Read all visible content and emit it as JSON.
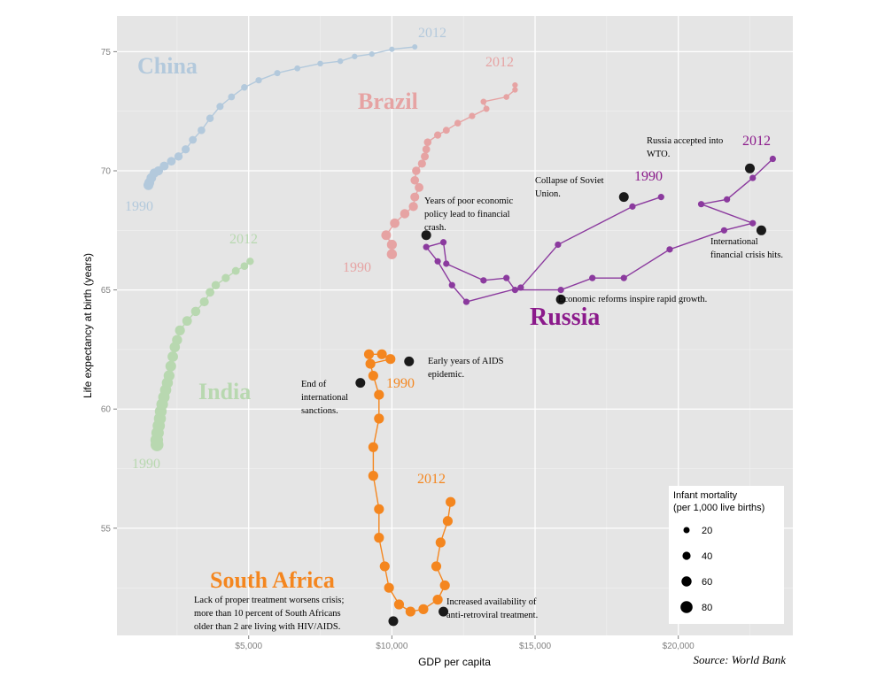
{
  "chart_data": {
    "type": "scatter",
    "xlabel": "GDP per capita",
    "ylabel": "Life expectancy at birth (years)",
    "xlim": [
      400,
      24000
    ],
    "ylim": [
      50.5,
      76.5
    ],
    "x_ticks": [
      {
        "value": 5000,
        "label": "$5,000"
      },
      {
        "value": 10000,
        "label": "$10,000"
      },
      {
        "value": 15000,
        "label": "$15,000"
      },
      {
        "value": 20000,
        "label": "$20,000"
      }
    ],
    "y_ticks": [
      {
        "value": 55,
        "label": "55"
      },
      {
        "value": 60,
        "label": "60"
      },
      {
        "value": 65,
        "label": "65"
      },
      {
        "value": 70,
        "label": "70"
      },
      {
        "value": 75,
        "label": "75"
      }
    ],
    "grid": true,
    "source": "Source: World Bank",
    "legend": {
      "title_line1": "Infant mortality",
      "title_line2": "(per 1,000 live births)",
      "placement": "bottom-right",
      "entries": [
        {
          "label": "20",
          "value": 20
        },
        {
          "label": "40",
          "value": 40
        },
        {
          "label": "60",
          "value": 60
        },
        {
          "label": "80",
          "value": 80
        }
      ]
    },
    "series": [
      {
        "name": "China",
        "color": "#b3c9dc",
        "points": [
          [
            1500,
            69.4,
            58
          ],
          [
            1530,
            69.5,
            57
          ],
          [
            1600,
            69.7,
            55
          ],
          [
            1700,
            69.9,
            52
          ],
          [
            1850,
            70.0,
            50
          ],
          [
            2050,
            70.2,
            48
          ],
          [
            2300,
            70.4,
            45
          ],
          [
            2550,
            70.6,
            42
          ],
          [
            2800,
            70.9,
            40
          ],
          [
            3050,
            71.3,
            37
          ],
          [
            3350,
            71.7,
            35
          ],
          [
            3650,
            72.2,
            33
          ],
          [
            4000,
            72.7,
            30
          ],
          [
            4400,
            73.1,
            27
          ],
          [
            4850,
            73.5,
            24
          ],
          [
            5350,
            73.8,
            22
          ],
          [
            6000,
            74.1,
            20
          ],
          [
            6700,
            74.3,
            18
          ],
          [
            7500,
            74.5,
            16
          ],
          [
            8200,
            74.6,
            15
          ],
          [
            8700,
            74.8,
            14
          ],
          [
            9300,
            74.9,
            13
          ],
          [
            10000,
            75.1,
            12
          ],
          [
            10800,
            75.2,
            11
          ]
        ],
        "label_year_start": "1990",
        "label_year_end": "2012"
      },
      {
        "name": "Brazil",
        "color": "#e6a3a3",
        "points": [
          [
            10000,
            66.5,
            60
          ],
          [
            10000,
            66.9,
            58
          ],
          [
            9800,
            67.3,
            56
          ],
          [
            10100,
            67.8,
            54
          ],
          [
            10450,
            68.2,
            52
          ],
          [
            10750,
            68.5,
            50
          ],
          [
            10800,
            68.9,
            48
          ],
          [
            10950,
            69.3,
            46
          ],
          [
            10800,
            69.6,
            44
          ],
          [
            10850,
            70.0,
            42
          ],
          [
            11050,
            70.3,
            40
          ],
          [
            11150,
            70.6,
            38
          ],
          [
            11200,
            70.9,
            36
          ],
          [
            11250,
            71.2,
            34
          ],
          [
            11600,
            71.5,
            31
          ],
          [
            11900,
            71.7,
            28
          ],
          [
            12300,
            72.0,
            25
          ],
          [
            12800,
            72.3,
            22
          ],
          [
            13300,
            72.6,
            20
          ],
          [
            13200,
            72.9,
            18
          ],
          [
            14000,
            73.1,
            16
          ],
          [
            14300,
            73.4,
            14
          ],
          [
            14300,
            73.6,
            13
          ]
        ],
        "label_year_start": "1990",
        "label_year_end": "2012"
      },
      {
        "name": "India",
        "color": "#b8d8b0",
        "points": [
          [
            1800,
            58.5,
            88
          ],
          [
            1790,
            58.7,
            86
          ],
          [
            1820,
            59.0,
            84
          ],
          [
            1860,
            59.3,
            82
          ],
          [
            1900,
            59.6,
            80
          ],
          [
            1930,
            59.9,
            78
          ],
          [
            1980,
            60.2,
            76
          ],
          [
            2040,
            60.5,
            74
          ],
          [
            2100,
            60.8,
            72
          ],
          [
            2160,
            61.1,
            70
          ],
          [
            2220,
            61.4,
            68
          ],
          [
            2280,
            61.8,
            66
          ],
          [
            2350,
            62.2,
            64
          ],
          [
            2420,
            62.6,
            62
          ],
          [
            2500,
            62.9,
            60
          ],
          [
            2600,
            63.3,
            58
          ],
          [
            2850,
            63.7,
            55
          ],
          [
            3150,
            64.1,
            52
          ],
          [
            3450,
            64.5,
            49
          ],
          [
            3650,
            64.9,
            46
          ],
          [
            3850,
            65.2,
            43
          ],
          [
            4200,
            65.5,
            40
          ],
          [
            4550,
            65.8,
            37
          ],
          [
            4850,
            66.0,
            35
          ],
          [
            5050,
            66.2,
            33
          ]
        ],
        "label_year_start": "1990",
        "label_year_end": "2012"
      },
      {
        "name": "Russia",
        "color": "#8b3a9e",
        "points": [
          [
            19400,
            68.9,
            22
          ],
          [
            18400,
            68.5,
            22
          ],
          [
            15800,
            66.9,
            22
          ],
          [
            14500,
            65.1,
            22
          ],
          [
            12600,
            64.5,
            22
          ],
          [
            12100,
            65.2,
            22
          ],
          [
            11600,
            66.2,
            22
          ],
          [
            11200,
            66.8,
            22
          ],
          [
            11800,
            67.0,
            22
          ],
          [
            11900,
            66.1,
            22
          ],
          [
            13200,
            65.4,
            22
          ],
          [
            14000,
            65.5,
            22
          ],
          [
            14300,
            65.0,
            22
          ],
          [
            15900,
            65.0,
            22
          ],
          [
            17000,
            65.5,
            22
          ],
          [
            18100,
            65.5,
            22
          ],
          [
            19700,
            66.7,
            22
          ],
          [
            21600,
            67.5,
            22
          ],
          [
            22600,
            67.8,
            22
          ],
          [
            20800,
            68.6,
            22
          ],
          [
            21700,
            68.8,
            22
          ],
          [
            22600,
            69.7,
            22
          ],
          [
            23300,
            70.5,
            22
          ]
        ],
        "label_year_start": "1990",
        "label_year_end": "2012"
      },
      {
        "name": "South Africa",
        "color": "#f4861f",
        "points": [
          [
            9200,
            62.3,
            58
          ],
          [
            9650,
            62.3,
            58
          ],
          [
            9950,
            62.1,
            58
          ],
          [
            9250,
            61.9,
            58
          ],
          [
            9350,
            61.4,
            58
          ],
          [
            9550,
            60.6,
            58
          ],
          [
            9550,
            59.6,
            58
          ],
          [
            9350,
            58.4,
            58
          ],
          [
            9350,
            57.2,
            58
          ],
          [
            9550,
            55.8,
            58
          ],
          [
            9550,
            54.6,
            58
          ],
          [
            9750,
            53.4,
            58
          ],
          [
            9900,
            52.5,
            58
          ],
          [
            10250,
            51.8,
            58
          ],
          [
            10650,
            51.5,
            58
          ],
          [
            11100,
            51.6,
            58
          ],
          [
            11600,
            52.0,
            58
          ],
          [
            11850,
            52.6,
            58
          ],
          [
            11550,
            53.4,
            58
          ],
          [
            11700,
            54.4,
            58
          ],
          [
            11950,
            55.3,
            58
          ],
          [
            12050,
            56.1,
            58
          ]
        ],
        "label_year_start": "1990",
        "label_year_end": "2012"
      }
    ],
    "annotations": [
      {
        "x": 18100,
        "y": 68.9,
        "lines": [
          "Collapse of Soviet",
          "Union."
        ]
      },
      {
        "x": 22500,
        "y": 70.1,
        "lines": [
          "Russia accepted into",
          "WTO."
        ]
      },
      {
        "x": 22900,
        "y": 67.5,
        "lines": [
          "International",
          "financial crisis hits."
        ]
      },
      {
        "x": 15900,
        "y": 64.6,
        "lines": [
          "Economic reforms inspire rapid growth."
        ]
      },
      {
        "x": 11200,
        "y": 67.3,
        "lines": [
          "Years of poor economic",
          "policy lead to financial",
          "crash."
        ]
      },
      {
        "x": 10600,
        "y": 62.0,
        "lines": [
          "Early years of AIDS",
          "epidemic."
        ]
      },
      {
        "x": 8900,
        "y": 61.1,
        "lines": [
          "End of",
          "international",
          "sanctions."
        ]
      },
      {
        "x": 10050,
        "y": 51.1,
        "lines": [
          "Lack of proper treatment worsens crisis;",
          "more than 10 percent of South Africans",
          "older than 2 are living with HIV/AIDS."
        ]
      },
      {
        "x": 11800,
        "y": 51.5,
        "lines": [
          "Increased availability of",
          "anti-retroviral treatment."
        ]
      }
    ]
  }
}
